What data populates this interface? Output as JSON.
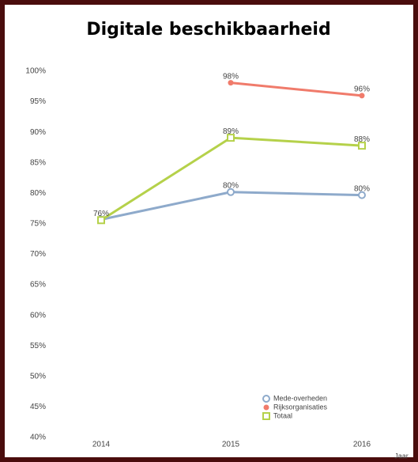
{
  "chart_data": {
    "type": "line",
    "title": "Digitale beschikbaarheid",
    "x_label": "Jaar",
    "categories": [
      "2014",
      "2015",
      "2016"
    ],
    "series": [
      {
        "name": "Mede-overheden",
        "color": "#8eaacb",
        "marker": "circle",
        "values": [
          75.7,
          80.2,
          79.7
        ],
        "value_labels": [
          null,
          "80%",
          "80%"
        ]
      },
      {
        "name": "Rijksorganisaties",
        "color": "#f07b6b",
        "marker": "dot",
        "values": [
          null,
          98.1,
          96.0
        ],
        "value_labels": [
          null,
          "98%",
          "96%"
        ]
      },
      {
        "name": "Totaal",
        "color": "#b5d14a",
        "marker": "square",
        "values": [
          75.6,
          89.1,
          87.8
        ],
        "value_labels": [
          "76%",
          "89%",
          "88%"
        ]
      }
    ],
    "ylim": [
      40,
      100
    ],
    "yticks": [
      {
        "value": 40,
        "label": "40%"
      },
      {
        "value": 45,
        "label": "45%"
      },
      {
        "value": 50,
        "label": "50%"
      },
      {
        "value": 55,
        "label": "55%"
      },
      {
        "value": 60,
        "label": "60%"
      },
      {
        "value": 65,
        "label": "65%"
      },
      {
        "value": 70,
        "label": "70%"
      },
      {
        "value": 75,
        "label": "75%"
      },
      {
        "value": 80,
        "label": "80%"
      },
      {
        "value": 85,
        "label": "85%"
      },
      {
        "value": 90,
        "label": "90%"
      },
      {
        "value": 95,
        "label": "95%"
      },
      {
        "value": 100,
        "label": "100%"
      }
    ],
    "legend": "lower right",
    "grid": false
  }
}
